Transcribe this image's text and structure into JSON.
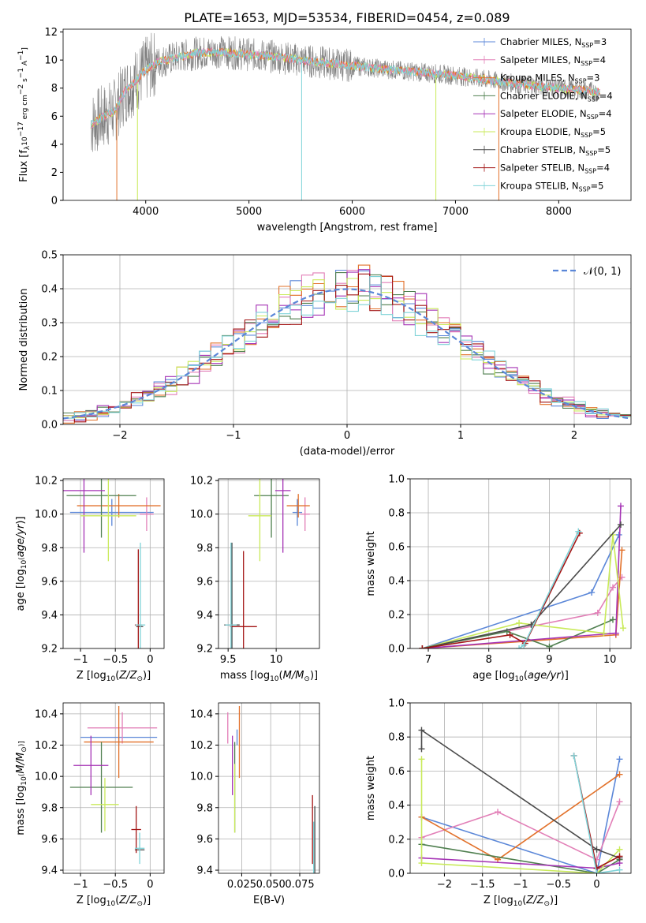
{
  "figure_title": "PLATE=1653, MJD=53534, FIBERID=0454, z=0.089",
  "colors": {
    "chabrier_miles": "#5b87d8",
    "salpeter_miles": "#e27fb7",
    "kroupa_miles": "#e2712a",
    "chabrier_elodie": "#4f7f4f",
    "salpeter_elodie": "#a533b5",
    "kroupa_elodie": "#c9ea59",
    "chabrier_stelib": "#4a4a4a",
    "salpeter_stelib": "#a31515",
    "kroupa_stelib": "#7fd3d8",
    "spectrum": "#808080",
    "normal": "#5b87d8"
  },
  "legend_entries": [
    {
      "label": "Chabrier MILES, N",
      "sub": "SSP",
      "tail": "=3",
      "key": "chabrier_miles"
    },
    {
      "label": "Salpeter MILES, N",
      "sub": "SSP",
      "tail": "=4",
      "key": "salpeter_miles"
    },
    {
      "label": "Kroupa MILES, N",
      "sub": "SSP",
      "tail": "=3",
      "key": "kroupa_miles"
    },
    {
      "label": "Chabrier ELODIE, N",
      "sub": "SSP",
      "tail": "=4",
      "key": "chabrier_elodie"
    },
    {
      "label": "Salpeter ELODIE, N",
      "sub": "SSP",
      "tail": "=4",
      "key": "salpeter_elodie"
    },
    {
      "label": "Kroupa ELODIE, N",
      "sub": "SSP",
      "tail": "=5",
      "key": "kroupa_elodie"
    },
    {
      "label": "Chabrier STELIB, N",
      "sub": "SSP",
      "tail": "=5",
      "key": "chabrier_stelib"
    },
    {
      "label": "Salpeter STELIB, N",
      "sub": "SSP",
      "tail": "=4",
      "key": "salpeter_stelib"
    },
    {
      "label": "Kroupa STELIB, N",
      "sub": "SSP",
      "tail": "=5",
      "key": "kroupa_stelib"
    }
  ],
  "chart_data": [
    {
      "id": "spectrum",
      "type": "line",
      "title": "PLATE=1653, MJD=53534, FIBERID=0454, z=0.089",
      "xlabel": "wavelength [Angstrom, rest frame]",
      "ylabel": "Flux [f_λ 10^-17 erg cm^-2 s^-1 A^-1]",
      "xlim": [
        3200,
        8700
      ],
      "ylim": [
        0,
        12.2
      ],
      "xticks": [
        4000,
        5000,
        6000,
        7000,
        8000
      ],
      "yticks": [
        0,
        2,
        4,
        6,
        8,
        10,
        12
      ],
      "continuum": {
        "x": [
          3470,
          3600,
          3700,
          3800,
          3900,
          4000,
          4100,
          4300,
          4500,
          4700,
          5000,
          5300,
          5600,
          6000,
          6400,
          6700,
          7000,
          7300,
          7600,
          8000,
          8300,
          8400
        ],
        "y": [
          5.4,
          6.0,
          6.4,
          7.8,
          8.5,
          9.3,
          9.8,
          10.2,
          10.5,
          10.6,
          10.4,
          10.2,
          9.9,
          9.6,
          9.3,
          9.1,
          8.9,
          8.6,
          8.3,
          8.0,
          7.8,
          7.7
        ]
      },
      "spikes": [
        {
          "x": 3720,
          "y": 0
        },
        {
          "x": 3920,
          "y": 0
        },
        {
          "x": 5510,
          "y": 0
        },
        {
          "x": 6810,
          "y": 0
        },
        {
          "x": 7420,
          "y": 0
        }
      ]
    },
    {
      "id": "residuals",
      "type": "histogram",
      "xlabel": "(data-model)/error",
      "ylabel": "Normed distribution",
      "xlim": [
        -2.5,
        2.5
      ],
      "ylim": [
        0,
        0.5
      ],
      "xticks": [
        -2,
        -1,
        0,
        1,
        2
      ],
      "yticks": [
        0.0,
        0.1,
        0.2,
        0.3,
        0.4,
        0.5
      ],
      "bin_width": 0.1,
      "reference_curve": {
        "name": "N(0,1)",
        "mean": 0,
        "sigma": 1
      }
    },
    {
      "id": "age_vs_Z",
      "type": "errorbar",
      "xlabel": "Z [log10(Z/Z_sun)]",
      "ylabel": "age [log10(age/yr)]",
      "xlim": [
        -1.25,
        0.2
      ],
      "ylim": [
        9.2,
        10.21
      ],
      "xticks": [
        -1.0,
        -0.5,
        0.0
      ],
      "yticks": [
        9.2,
        9.4,
        9.6,
        9.8,
        10.0,
        10.2
      ],
      "points": [
        {
          "key": "chabrier_miles",
          "x": -0.55,
          "xerr": 0.6,
          "y": 10.01,
          "yerr": 0.08
        },
        {
          "key": "salpeter_miles",
          "x": -0.05,
          "xerr": 0.1,
          "y": 10.0,
          "yerr": 0.1
        },
        {
          "key": "kroupa_miles",
          "x": -0.45,
          "xerr": 0.6,
          "y": 10.05,
          "yerr": 0.07
        },
        {
          "key": "chabrier_elodie",
          "x": -0.7,
          "xerr": 0.5,
          "y": 10.11,
          "yerr": 0.25
        },
        {
          "key": "salpeter_elodie",
          "x": -0.95,
          "xerr": 0.3,
          "y": 10.14,
          "yerr": 0.37
        },
        {
          "key": "kroupa_elodie",
          "x": -0.6,
          "xerr": 0.4,
          "y": 9.99,
          "yerr": 0.27
        },
        {
          "key": "chabrier_stelib",
          "x": -0.15,
          "xerr": 0.05,
          "y": 9.33,
          "yerr": 0.0
        },
        {
          "key": "salpeter_stelib",
          "x": -0.17,
          "xerr": 0.05,
          "y": 9.34,
          "yerr": 0.45
        },
        {
          "key": "kroupa_stelib",
          "x": -0.14,
          "xerr": 0.07,
          "y": 9.34,
          "yerr": 0.49
        }
      ]
    },
    {
      "id": "age_vs_mass",
      "type": "errorbar",
      "xlabel": "mass [log10(M/M_sun)]",
      "ylabel": "",
      "xlim": [
        9.4,
        10.45
      ],
      "ylim": [
        9.2,
        10.21
      ],
      "xticks": [
        9.5,
        10.0
      ],
      "yticks": [
        9.2,
        9.4,
        9.6,
        9.8,
        10.0,
        10.2
      ],
      "points": [
        {
          "key": "chabrier_miles",
          "x": 10.22,
          "xerr": 0.05,
          "y": 10.01,
          "yerr": 0.08
        },
        {
          "key": "salpeter_miles",
          "x": 10.3,
          "xerr": 0.05,
          "y": 10.0,
          "yerr": 0.1
        },
        {
          "key": "kroupa_miles",
          "x": 10.23,
          "xerr": 0.12,
          "y": 10.05,
          "yerr": 0.07
        },
        {
          "key": "chabrier_elodie",
          "x": 9.95,
          "xerr": 0.18,
          "y": 10.11,
          "yerr": 0.25
        },
        {
          "key": "salpeter_elodie",
          "x": 10.07,
          "xerr": 0.08,
          "y": 10.14,
          "yerr": 0.37
        },
        {
          "key": "kroupa_elodie",
          "x": 9.83,
          "xerr": 0.12,
          "y": 9.99,
          "yerr": 0.27
        },
        {
          "key": "chabrier_stelib",
          "x": 9.54,
          "xerr": 0.08,
          "y": 9.34,
          "yerr": 0.49
        },
        {
          "key": "salpeter_stelib",
          "x": 9.66,
          "xerr": 0.14,
          "y": 9.33,
          "yerr": 0.45
        },
        {
          "key": "kroupa_stelib",
          "x": 9.53,
          "xerr": 0.06,
          "y": 9.34,
          "yerr": 0.49
        }
      ]
    },
    {
      "id": "weight_vs_age",
      "type": "line",
      "xlabel": "age [log10(age/yr)]",
      "ylabel": "mass weight",
      "xlim": [
        6.7,
        10.35
      ],
      "ylim": [
        0,
        1.0
      ],
      "xticks": [
        7,
        8,
        9,
        10
      ],
      "yticks": [
        0.0,
        0.2,
        0.4,
        0.6,
        0.8,
        1.0
      ],
      "series": [
        {
          "key": "chabrier_miles",
          "x": [
            6.9,
            9.7,
            10.15
          ],
          "y": [
            0.0,
            0.33,
            0.67
          ]
        },
        {
          "key": "salpeter_miles",
          "x": [
            6.9,
            9.8,
            10.05,
            10.2
          ],
          "y": [
            0.0,
            0.21,
            0.36,
            0.42
          ]
        },
        {
          "key": "kroupa_miles",
          "x": [
            6.9,
            10.1,
            10.2
          ],
          "y": [
            0.0,
            0.08,
            0.58
          ]
        },
        {
          "key": "chabrier_elodie",
          "x": [
            6.9,
            8.3,
            9.0,
            10.05
          ],
          "y": [
            0.0,
            0.1,
            0.01,
            0.17
          ]
        },
        {
          "key": "salpeter_elodie",
          "x": [
            6.9,
            10.1,
            10.18
          ],
          "y": [
            0.0,
            0.09,
            0.84
          ]
        },
        {
          "key": "kroupa_elodie",
          "x": [
            6.9,
            8.5,
            9.9,
            10.05,
            10.22
          ],
          "y": [
            0.0,
            0.15,
            0.09,
            0.67,
            0.12
          ]
        },
        {
          "key": "chabrier_stelib",
          "x": [
            6.9,
            8.7,
            10.18
          ],
          "y": [
            0.0,
            0.14,
            0.73
          ]
        },
        {
          "key": "salpeter_stelib",
          "x": [
            6.9,
            8.35,
            8.6,
            9.5
          ],
          "y": [
            0.0,
            0.08,
            0.03,
            0.68
          ]
        },
        {
          "key": "kroupa_stelib",
          "x": [
            8.5,
            8.58,
            9.48
          ],
          "y": [
            0.0,
            0.02,
            0.69
          ]
        }
      ]
    },
    {
      "id": "mass_vs_Z",
      "type": "errorbar",
      "xlabel": "Z [log10(Z/Z_sun)]",
      "ylabel": "mass [log10(M/M_sun)]",
      "xlim": [
        -1.25,
        0.2
      ],
      "ylim": [
        9.38,
        10.47
      ],
      "xticks": [
        -1.0,
        -0.5,
        0.0
      ],
      "yticks": [
        9.4,
        9.6,
        9.8,
        10.0,
        10.2,
        10.4
      ],
      "points": [
        {
          "key": "chabrier_miles",
          "x": -0.45,
          "xerr": 0.55,
          "y": 10.25,
          "yerr": 0.05
        },
        {
          "key": "salpeter_miles",
          "x": -0.4,
          "xerr": 0.5,
          "y": 10.31,
          "yerr": 0.1
        },
        {
          "key": "kroupa_miles",
          "x": -0.45,
          "xerr": 0.5,
          "y": 10.22,
          "yerr": 0.23
        },
        {
          "key": "chabrier_elodie",
          "x": -0.7,
          "xerr": 0.45,
          "y": 9.93,
          "yerr": 0.29
        },
        {
          "key": "salpeter_elodie",
          "x": -0.85,
          "xerr": 0.25,
          "y": 10.07,
          "yerr": 0.19
        },
        {
          "key": "kroupa_elodie",
          "x": -0.65,
          "xerr": 0.2,
          "y": 9.82,
          "yerr": 0.17
        },
        {
          "key": "chabrier_stelib",
          "x": -0.15,
          "xerr": 0.07,
          "y": 9.53,
          "yerr": 0.0
        },
        {
          "key": "salpeter_stelib",
          "x": -0.2,
          "xerr": 0.07,
          "y": 9.66,
          "yerr": 0.15
        },
        {
          "key": "kroupa_stelib",
          "x": -0.15,
          "xerr": 0.07,
          "y": 9.54,
          "yerr": 0.1
        }
      ]
    },
    {
      "id": "mass_vs_ebv",
      "type": "errorbar",
      "xlabel": "E(B-V)",
      "ylabel": "",
      "xlim": [
        0.005,
        0.092
      ],
      "ylim": [
        9.38,
        10.47
      ],
      "xticks": [
        0.025,
        0.05,
        0.075
      ],
      "xticklabels": [
        "0.025",
        "0.050",
        "0.075"
      ],
      "yticks": [
        9.4,
        9.6,
        9.8,
        10.0,
        10.2,
        10.4
      ],
      "points": [
        {
          "key": "chabrier_miles",
          "x": 0.021,
          "yerr": 0.05,
          "y": 10.25
        },
        {
          "key": "salpeter_miles",
          "x": 0.013,
          "yerr": 0.1,
          "y": 10.31
        },
        {
          "key": "kroupa_miles",
          "x": 0.023,
          "yerr": 0.23,
          "y": 10.22
        },
        {
          "key": "chabrier_elodie",
          "x": 0.019,
          "yerr": 0.29,
          "y": 9.93
        },
        {
          "key": "salpeter_elodie",
          "x": 0.017,
          "yerr": 0.19,
          "y": 10.07
        },
        {
          "key": "kroupa_elodie",
          "x": 0.019,
          "yerr": 0.22,
          "y": 9.86
        },
        {
          "key": "chabrier_stelib",
          "x": 0.088,
          "yerr": 0.28,
          "y": 9.53
        },
        {
          "key": "salpeter_stelib",
          "x": 0.086,
          "yerr": 0.22,
          "y": 9.66
        },
        {
          "key": "kroupa_stelib",
          "x": 0.087,
          "yerr": 0.17,
          "y": 9.54
        }
      ]
    },
    {
      "id": "weight_vs_Z",
      "type": "line",
      "xlabel": "Z [log10(Z/Z_sun)]",
      "ylabel": "mass weight",
      "xlim": [
        -2.45,
        0.45
      ],
      "ylim": [
        0,
        1.0
      ],
      "xticks": [
        -2.0,
        -1.5,
        -1.0,
        -0.5,
        0.0
      ],
      "yticks": [
        0.0,
        0.2,
        0.4,
        0.6,
        0.8,
        1.0
      ],
      "series": [
        {
          "key": "chabrier_miles",
          "x": [
            -2.3,
            0.0,
            0.3
          ],
          "y": [
            0.33,
            0.0,
            0.67
          ]
        },
        {
          "key": "salpeter_miles",
          "x": [
            -2.3,
            -1.3,
            0.0,
            0.3
          ],
          "y": [
            0.21,
            0.36,
            0.08,
            0.42
          ]
        },
        {
          "key": "kroupa_miles",
          "x": [
            -2.3,
            -1.3,
            0.3
          ],
          "y": [
            0.33,
            0.08,
            0.58
          ]
        },
        {
          "key": "chabrier_elodie",
          "x": [
            -2.3,
            0.0,
            0.3
          ],
          "y": [
            0.17,
            0.0,
            0.08
          ]
        },
        {
          "key": "salpeter_elodie",
          "x": [
            -2.3,
            0.0,
            0.3
          ],
          "y": [
            0.09,
            0.03,
            0.06
          ]
        },
        {
          "key": "kroupa_elodie",
          "x": [
            -2.3,
            -2.3,
            0.0,
            0.3
          ],
          "y": [
            0.67,
            0.06,
            0.0,
            0.14
          ]
        },
        {
          "key": "chabrier_stelib",
          "x": [
            -2.3,
            -2.3,
            0.0,
            0.3
          ],
          "y": [
            0.73,
            0.84,
            0.14,
            0.09
          ]
        },
        {
          "key": "salpeter_stelib",
          "x": [
            -0.3,
            0.0,
            0.3
          ],
          "y": [
            0.69,
            0.03,
            0.1
          ]
        },
        {
          "key": "kroupa_stelib",
          "x": [
            -0.3,
            0.0,
            0.3
          ],
          "y": [
            0.69,
            0.0,
            0.02
          ]
        }
      ]
    }
  ]
}
